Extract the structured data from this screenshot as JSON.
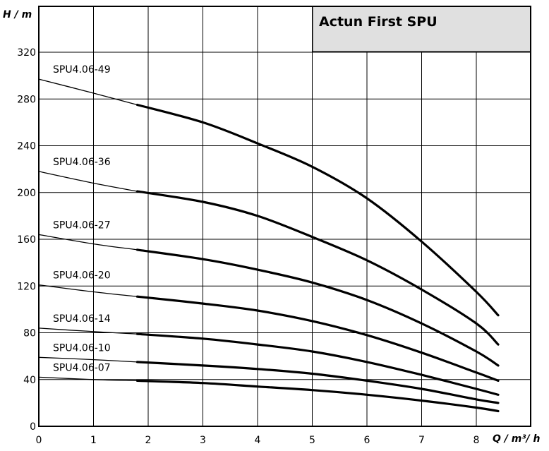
{
  "chart_data": {
    "type": "line",
    "title": "Actun First SPU",
    "xlabel": "Q / m³/ h",
    "ylabel": "H / m",
    "xlim": [
      0,
      9
    ],
    "ylim": [
      0,
      360
    ],
    "xticks": [
      0,
      1,
      2,
      3,
      4,
      5,
      6,
      7,
      8
    ],
    "yticks": [
      0,
      40,
      80,
      120,
      160,
      200,
      240,
      280,
      320
    ],
    "grid": true,
    "legend": "none",
    "operating_range": [
      1.8,
      8.4
    ],
    "series": [
      {
        "name": "SPU4.06-49",
        "points": [
          [
            0,
            297
          ],
          [
            1,
            285
          ],
          [
            1.8,
            275
          ],
          [
            3,
            260
          ],
          [
            4,
            242
          ],
          [
            5,
            222
          ],
          [
            6,
            195
          ],
          [
            7,
            158
          ],
          [
            8,
            115
          ],
          [
            8.4,
            95
          ]
        ]
      },
      {
        "name": "SPU4.06-36",
        "points": [
          [
            0,
            218
          ],
          [
            1,
            208
          ],
          [
            1.8,
            201
          ],
          [
            3,
            192
          ],
          [
            4,
            180
          ],
          [
            5,
            162
          ],
          [
            6,
            142
          ],
          [
            7,
            117
          ],
          [
            8,
            88
          ],
          [
            8.4,
            70
          ]
        ]
      },
      {
        "name": "SPU4.06-27",
        "points": [
          [
            0,
            164
          ],
          [
            1,
            156
          ],
          [
            1.8,
            151
          ],
          [
            3,
            143
          ],
          [
            4,
            134
          ],
          [
            5,
            123
          ],
          [
            6,
            108
          ],
          [
            7,
            88
          ],
          [
            8,
            64
          ],
          [
            8.4,
            52
          ]
        ]
      },
      {
        "name": "SPU4.06-20",
        "points": [
          [
            0,
            121
          ],
          [
            1,
            115
          ],
          [
            1.8,
            111
          ],
          [
            3,
            105
          ],
          [
            4,
            99
          ],
          [
            5,
            90
          ],
          [
            6,
            78
          ],
          [
            7,
            63
          ],
          [
            8,
            46
          ],
          [
            8.4,
            39
          ]
        ]
      },
      {
        "name": "SPU4.06-14",
        "points": [
          [
            0,
            84
          ],
          [
            1,
            81
          ],
          [
            1.8,
            79
          ],
          [
            3,
            75
          ],
          [
            4,
            70
          ],
          [
            5,
            64
          ],
          [
            6,
            55
          ],
          [
            7,
            44
          ],
          [
            8,
            32
          ],
          [
            8.4,
            27
          ]
        ]
      },
      {
        "name": "SPU4.06-10",
        "points": [
          [
            0,
            59
          ],
          [
            1,
            57
          ],
          [
            1.8,
            55
          ],
          [
            3,
            52
          ],
          [
            4,
            49
          ],
          [
            5,
            45
          ],
          [
            6,
            39
          ],
          [
            7,
            32
          ],
          [
            8,
            23
          ],
          [
            8.4,
            20
          ]
        ]
      },
      {
        "name": "SPU4.06-07",
        "points": [
          [
            0,
            42
          ],
          [
            1,
            40
          ],
          [
            1.8,
            39
          ],
          [
            3,
            37
          ],
          [
            4,
            34
          ],
          [
            5,
            31
          ],
          [
            6,
            27
          ],
          [
            7,
            22
          ],
          [
            8,
            16
          ],
          [
            8.4,
            13
          ]
        ]
      }
    ]
  }
}
